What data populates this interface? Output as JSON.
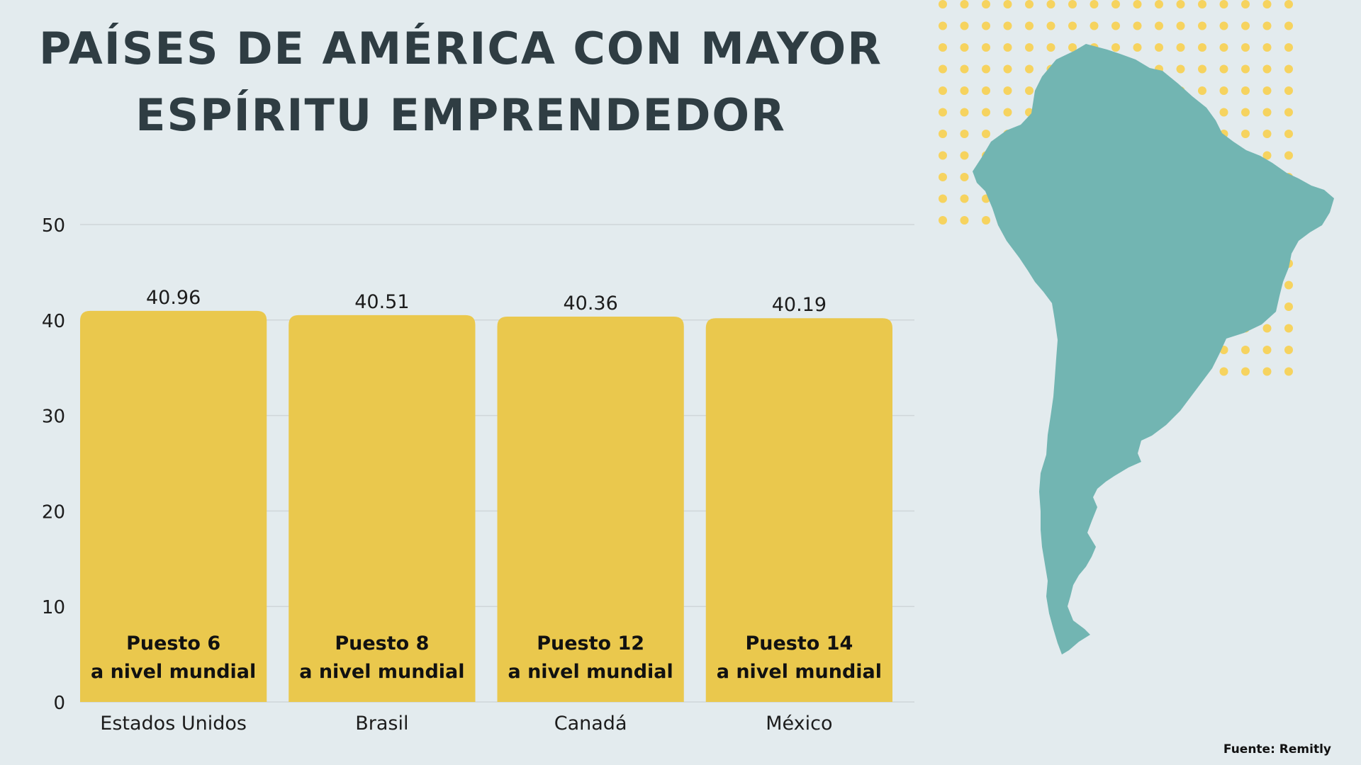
{
  "chart_data": {
    "type": "bar",
    "title_lines": [
      "PAÍSES DE AMÉRICA CON MAYOR",
      "ESPÍRITU EMPRENDEDOR"
    ],
    "categories": [
      "Estados Unidos",
      "Brasil",
      "Canadá",
      "México"
    ],
    "values": [
      40.96,
      40.51,
      40.36,
      40.19
    ],
    "value_labels": [
      "40.96",
      "40.51",
      "40.36",
      "40.19"
    ],
    "bar_notes": [
      [
        "Puesto 6",
        "a nivel mundial"
      ],
      [
        "Puesto 8",
        "a nivel mundial"
      ],
      [
        "Puesto 12",
        "a nivel mundial"
      ],
      [
        "Puesto 14",
        "a nivel mundial"
      ]
    ],
    "ylim": [
      0,
      50
    ],
    "yticks": [
      0,
      10,
      20,
      30,
      40,
      50
    ],
    "grid": true,
    "legend": "none"
  },
  "source": "Fuente: Remitly",
  "colors": {
    "background": "#e3ebee",
    "bar": "#eac84d",
    "title": "#2f3d43",
    "map": "#72b5b2",
    "dots": "#f6d35f",
    "grid": "#cfd6d9"
  },
  "map_icon": "south-america-map"
}
